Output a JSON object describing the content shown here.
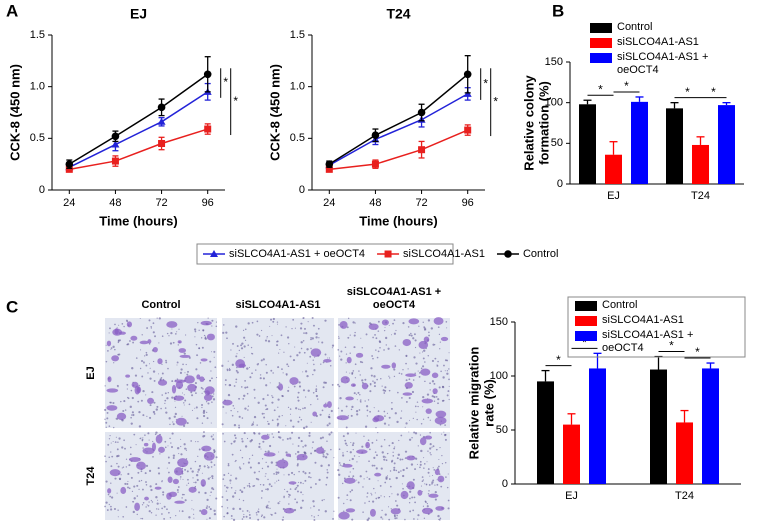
{
  "panel_labels": [
    "A",
    "B",
    "C"
  ],
  "micrographs": {
    "columns": [
      "Control",
      "siSLCO4A1-AS1",
      "siSLCO4A1-AS1 + oeOCT4"
    ],
    "rows": [
      "EJ",
      "T24"
    ]
  },
  "chart_data": [
    {
      "type": "line",
      "title": "EJ",
      "x_label": "Time (hours)",
      "y_label": "CCK-8 (450 nm)",
      "x": [
        24,
        48,
        72,
        96
      ],
      "xlim": [
        15,
        105
      ],
      "xticks": [
        24,
        48,
        72,
        96
      ],
      "ylim": [
        0,
        1.5
      ],
      "yticks": [
        0,
        0.5,
        {
          "value": 1,
          "label": "1.0"
        },
        1.5
      ],
      "series": [
        {
          "name": "siSLCO4A1-AS1 + oeOCT4",
          "color": "#2323d8",
          "marker": "triangle",
          "values": [
            0.22,
            0.44,
            0.66,
            0.95
          ],
          "errors": [
            0.04,
            0.06,
            0.04,
            0.08
          ]
        },
        {
          "name": "siSLCO4A1-AS1",
          "color": "#e8201e",
          "marker": "square",
          "values": [
            0.2,
            0.28,
            0.45,
            0.59
          ],
          "errors": [
            0.02,
            0.05,
            0.06,
            0.05
          ]
        },
        {
          "name": "Control",
          "color": "#000000",
          "marker": "circle",
          "values": [
            0.25,
            0.52,
            0.8,
            1.12
          ],
          "errors": [
            0.04,
            0.05,
            0.08,
            0.17
          ]
        }
      ],
      "annotations": [
        "*",
        "*"
      ]
    },
    {
      "type": "line",
      "title": "T24",
      "x_label": "Time (hours)",
      "y_label": "CCK-8 (450 nm)",
      "x": [
        24,
        48,
        72,
        96
      ],
      "xlim": [
        15,
        105
      ],
      "xticks": [
        24,
        48,
        72,
        96
      ],
      "ylim": [
        0,
        1.5
      ],
      "yticks": [
        0,
        0.5,
        {
          "value": 1,
          "label": "1.0"
        },
        1.5
      ],
      "series": [
        {
          "color": "#2323d8",
          "marker": "triangle",
          "values": [
            0.24,
            0.49,
            0.68,
            0.93
          ],
          "errors": [
            0.03,
            0.05,
            0.07,
            0.06
          ]
        },
        {
          "color": "#e8201e",
          "marker": "square",
          "values": [
            0.2,
            0.25,
            0.39,
            0.58
          ],
          "errors": [
            0.02,
            0.04,
            0.08,
            0.05
          ]
        },
        {
          "color": "#000000",
          "marker": "circle",
          "values": [
            0.25,
            0.53,
            0.75,
            1.12
          ],
          "errors": [
            0.03,
            0.06,
            0.08,
            0.18
          ]
        }
      ],
      "annotations": [
        "*",
        "*"
      ]
    },
    {
      "type": "bar",
      "y_label": [
        "Relative colony",
        "formation (%)"
      ],
      "categories": [
        "EJ",
        "T24"
      ],
      "ylim": [
        0,
        150
      ],
      "yticks": [
        0,
        50,
        100,
        150
      ],
      "series": [
        {
          "name": "Control",
          "color": "#000000",
          "values": [
            98,
            93
          ],
          "errors": [
            5,
            7
          ]
        },
        {
          "name": "siSLCO4A1-AS1",
          "color": "#ff0000",
          "values": [
            36,
            48
          ],
          "errors": [
            16,
            10
          ]
        },
        {
          "name": "siSLCO4A1-AS1 + oeOCT4",
          "color": "#0000ff",
          "values": [
            101,
            97
          ],
          "errors": [
            6,
            3
          ]
        }
      ],
      "annotations": [
        "*",
        "*",
        "*",
        "*"
      ]
    },
    {
      "type": "bar",
      "y_label": [
        "Relative migration",
        "rate (%)"
      ],
      "categories": [
        "EJ",
        "T24"
      ],
      "ylim": [
        0,
        150
      ],
      "yticks": [
        0,
        50,
        100,
        150
      ],
      "series": [
        {
          "name": "Control",
          "color": "#000000",
          "values": [
            95,
            106
          ],
          "errors": [
            10,
            12
          ]
        },
        {
          "name": "siSLCO4A1-AS1",
          "color": "#ff0000",
          "values": [
            55,
            57
          ],
          "errors": [
            10,
            11
          ]
        },
        {
          "name": "siSLCO4A1-AS1 + oeOCT4",
          "color": "#0000ff",
          "values": [
            107,
            107
          ],
          "errors": [
            14,
            5
          ]
        }
      ],
      "annotations": [
        "*",
        "*",
        "*",
        "*"
      ]
    }
  ]
}
